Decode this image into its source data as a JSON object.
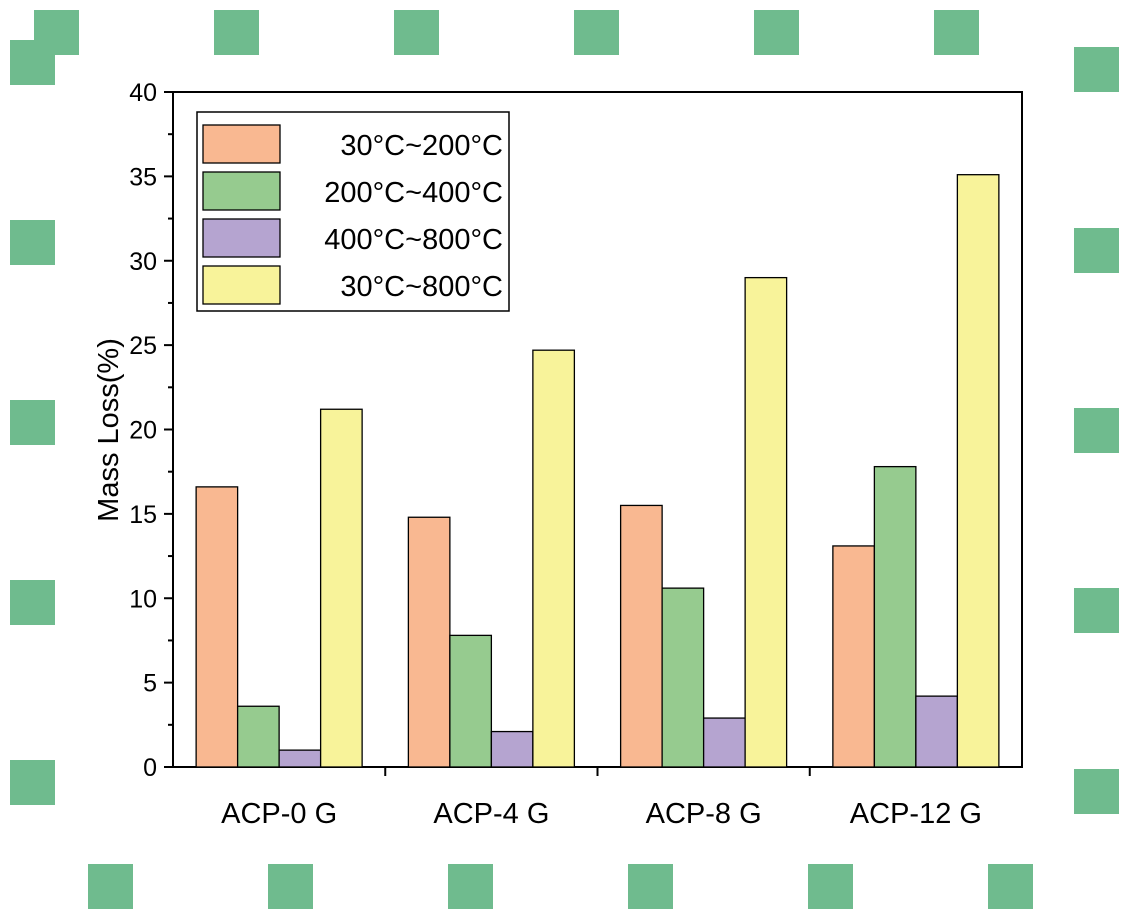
{
  "chart_data": {
    "type": "bar",
    "categories": [
      "ACP-0 G",
      "ACP-4 G",
      "ACP-8 G",
      "ACP-12 G"
    ],
    "series": [
      {
        "name": "30°C~200°C",
        "values": [
          16.6,
          14.8,
          15.5,
          13.1
        ],
        "color": "#F9B891"
      },
      {
        "name": "200°C~400°C",
        "values": [
          3.6,
          7.8,
          10.6,
          17.8
        ],
        "color": "#96CB8F"
      },
      {
        "name": "400°C~800°C",
        "values": [
          1.0,
          2.1,
          2.9,
          4.2
        ],
        "color": "#B5A4D0"
      },
      {
        "name": "30°C~800°C",
        "values": [
          21.2,
          24.7,
          29.0,
          35.1
        ],
        "color": "#F8F39A"
      }
    ],
    "ylabel": "Mass Loss(%)",
    "xlabel": "",
    "ylim": [
      0,
      40
    ],
    "yticks": [
      0,
      5,
      10,
      15,
      20,
      25,
      30,
      35,
      40
    ],
    "legend_position": "top-left",
    "grid": false
  },
  "decoration": {
    "square_color": "#6FBB8E"
  }
}
